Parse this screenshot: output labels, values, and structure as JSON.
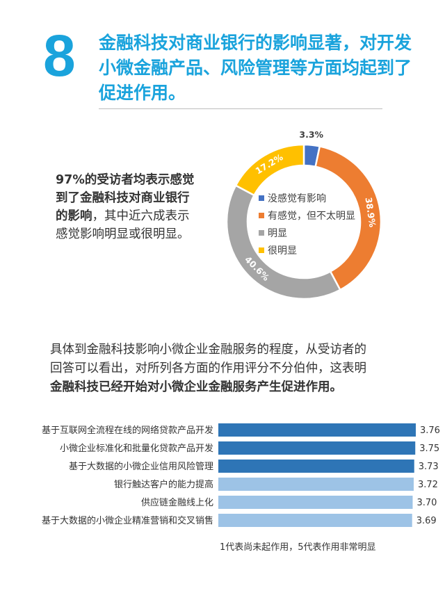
{
  "section_number": "8",
  "headline_lines": [
    "金融科技对商业银行的影响显著，对开发",
    "小微金融产品、风险管理等方面均起到了",
    "促进作用。"
  ],
  "note1": {
    "bold_lines": [
      "97%的受访者均表示感觉",
      "到了金融科技对商业银行",
      "的影响"
    ],
    "normal_tail": "，其中近六成表示",
    "normal_lines": [
      "感觉影响明显或很明显。"
    ]
  },
  "paragraph": {
    "lines": [
      "具体到金融科技影响小微企业金融服务的程度，从受访者的",
      "回答可以看出，对所列各方面的作用评分不分伯仲，这表明"
    ],
    "bold_line": "金融科技已经开始对小微企业金融服务产生促进作用。"
  },
  "footnote": "1代表尚未起作用，5代表作用非常明显",
  "chart_data": [
    {
      "type": "pie",
      "categories": [
        "没感觉有影响",
        "有感觉，但不太明显",
        "明显",
        "很明显"
      ],
      "values": [
        3.3,
        38.9,
        40.6,
        17.2
      ],
      "labels": [
        "3.3%",
        "38.9%",
        "40.6%",
        "17.2%"
      ],
      "colors": [
        "#4472c4",
        "#ed7d31",
        "#a5a5a5",
        "#ffc000"
      ],
      "legend": "center"
    },
    {
      "type": "bar",
      "orientation": "horizontal",
      "categories": [
        "基于互联网全流程在线的网络贷款产品开发",
        "小微企业标准化和批量化贷款产品开发",
        "基于大数据的小微企业信用风险管理",
        "银行触达客户的能力提高",
        "供应链金融线上化",
        "基于大数据的小微企业精准营销和交叉销售"
      ],
      "values": [
        3.76,
        3.75,
        3.73,
        3.72,
        3.7,
        3.69
      ],
      "labels": [
        "3.76",
        "3.75",
        "3.73",
        "3.72",
        "3.70",
        "3.69"
      ],
      "colors": [
        "#2e75b6",
        "#2e75b6",
        "#2e75b6",
        "#9dc3e6",
        "#9dc3e6",
        "#9dc3e6"
      ]
    }
  ]
}
